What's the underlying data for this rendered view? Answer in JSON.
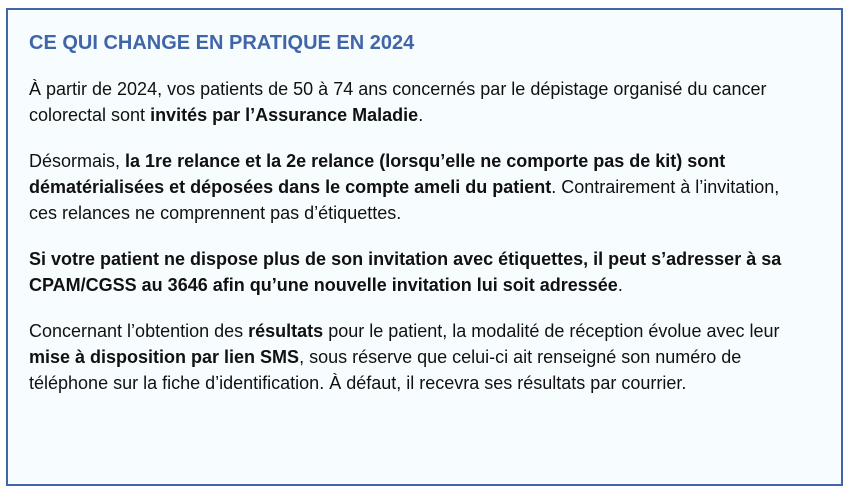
{
  "title": "CE QUI CHANGE EN PRATIQUE EN 2024",
  "paragraphs": [
    [
      {
        "t": "À partir de 2024, vos patients de 50 à 74 ans concernés par le dépistage organisé du cancer colorectal sont ",
        "b": false
      },
      {
        "t": "invités par l’Assurance Maladie",
        "b": true
      },
      {
        "t": ".",
        "b": false
      }
    ],
    [
      {
        "t": "Désormais, ",
        "b": false
      },
      {
        "t": "la 1re relance et la 2e relance (lorsqu’elle ne comporte pas de kit) sont dématérialisées et déposées dans le compte ameli du patient",
        "b": true
      },
      {
        "t": ". Contrairement à l’invitation, ces relances ne comprennent pas d’étiquettes.",
        "b": false
      }
    ],
    [
      {
        "t": "Si votre patient ne dispose plus de son invitation avec étiquettes, il peut s’adresser à sa CPAM/CGSS au 3646 afin qu’une nouvelle invitation lui soit adressée",
        "b": true
      },
      {
        "t": ".",
        "b": false
      }
    ],
    [
      {
        "t": "Concernant l’obtention des ",
        "b": false
      },
      {
        "t": "résultats",
        "b": true
      },
      {
        "t": " pour le patient, la modalité de réception évolue avec leur ",
        "b": false
      },
      {
        "t": "mise à disposition par lien SMS",
        "b": true
      },
      {
        "t": ", sous réserve que celui-ci ait renseigné son numéro de téléphone sur la fiche d’identification. À défaut, il recevra ses résultats par courrier.",
        "b": false
      }
    ]
  ],
  "colors": {
    "accent": "#4065a9",
    "background": "#f7fdff"
  }
}
